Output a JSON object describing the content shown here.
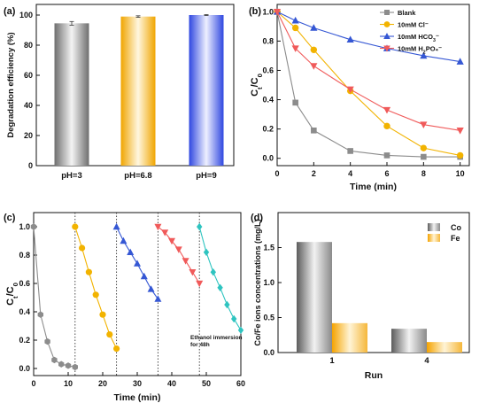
{
  "chart_data": [
    {
      "panel": "(a)",
      "type": "bar",
      "ylabel": "Degradation efficiency (%)",
      "ylim": [
        0,
        100
      ],
      "yticks": [
        0,
        20,
        40,
        60,
        80,
        100
      ],
      "categories": [
        "pH=3",
        "pH=6.8",
        "pH=9"
      ],
      "values": [
        94.5,
        99.0,
        100.0
      ],
      "errors": [
        1.2,
        0.5,
        0.3
      ],
      "colors": [
        "#9e9e9e",
        "#f5b73b",
        "#4a5fe0"
      ]
    },
    {
      "panel": "(b)",
      "type": "line",
      "xlabel": "Time (min)",
      "ylabel": "Ct/C0",
      "ylabel_parts": [
        "C",
        "t",
        "/C",
        "0"
      ],
      "xlim": [
        0,
        10.5
      ],
      "ylim": [
        -0.05,
        1.05
      ],
      "xticks": [
        0,
        2,
        4,
        6,
        8,
        10
      ],
      "yticks": [
        "0.0",
        "0.2",
        "0.4",
        "0.6",
        "0.8",
        "1.0"
      ],
      "legend_position": "top-right",
      "x": [
        0,
        1,
        2,
        4,
        6,
        8,
        10
      ],
      "series": [
        {
          "name": "Blank",
          "name_parts": [
            "Blank",
            "",
            ""
          ],
          "color": "#8c8c8c",
          "marker": "square",
          "values": [
            1.0,
            0.38,
            0.19,
            0.05,
            0.02,
            0.01,
            0.01
          ]
        },
        {
          "name": "10mM Cl⁻",
          "name_parts": [
            "10mM Cl",
            "",
            "⁻"
          ],
          "color": "#f2b300",
          "marker": "circle",
          "values": [
            1.0,
            0.89,
            0.74,
            0.46,
            0.22,
            0.07,
            0.02
          ]
        },
        {
          "name": "10mM HCO₃⁻",
          "name_parts": [
            "10mM HCO",
            "3",
            "⁻"
          ],
          "color": "#3557d4",
          "marker": "triangle-up",
          "values": [
            1.0,
            0.94,
            0.89,
            0.81,
            0.75,
            0.7,
            0.66
          ]
        },
        {
          "name": "10mM H₂PO₄⁻",
          "name_parts": [
            "10mM H",
            "2",
            "PO₄⁻"
          ],
          "color": "#f05a5a",
          "marker": "triangle-down",
          "values": [
            1.0,
            0.75,
            0.63,
            0.47,
            0.33,
            0.23,
            0.19
          ]
        }
      ]
    },
    {
      "panel": "(c)",
      "type": "line",
      "xlabel": "Time (min)",
      "ylabel": "Ct/C0",
      "ylabel_parts": [
        "C",
        "t",
        "/C",
        "0"
      ],
      "xlim": [
        0,
        60
      ],
      "ylim": [
        -0.05,
        1.1
      ],
      "xticks": [
        0,
        10,
        20,
        30,
        40,
        50,
        60
      ],
      "yticks": [
        "0.0",
        "0.2",
        "0.4",
        "0.6",
        "0.8",
        "1.0"
      ],
      "dividers": [
        12,
        24,
        36,
        48
      ],
      "annotation": "Ethanol immersion for 48h",
      "annotation_lines": [
        "Ethanol immersion",
        "for 48h"
      ],
      "series": [
        {
          "color": "#8c8c8c",
          "marker": "hexagon",
          "x": [
            0,
            2,
            4,
            6,
            8,
            10,
            12
          ],
          "values": [
            1.0,
            0.38,
            0.19,
            0.06,
            0.03,
            0.02,
            0.01
          ]
        },
        {
          "color": "#f2b300",
          "marker": "circle",
          "x": [
            12,
            14,
            16,
            18,
            20,
            22,
            24
          ],
          "values": [
            1.0,
            0.85,
            0.68,
            0.52,
            0.38,
            0.24,
            0.14
          ]
        },
        {
          "color": "#3557d4",
          "marker": "triangle-up",
          "x": [
            24,
            26,
            28,
            30,
            32,
            34,
            36
          ],
          "values": [
            1.0,
            0.9,
            0.82,
            0.74,
            0.65,
            0.56,
            0.49
          ]
        },
        {
          "color": "#f05a5a",
          "marker": "triangle-down",
          "x": [
            36,
            38,
            40,
            42,
            44,
            46,
            48
          ],
          "values": [
            1.0,
            0.96,
            0.9,
            0.84,
            0.76,
            0.68,
            0.6
          ]
        },
        {
          "color": "#2ec4c0",
          "marker": "diamond",
          "x": [
            48,
            50,
            52,
            54,
            56,
            58,
            60
          ],
          "values": [
            1.0,
            0.82,
            0.68,
            0.57,
            0.45,
            0.35,
            0.27
          ]
        }
      ]
    },
    {
      "panel": "(d)",
      "type": "bar",
      "xlabel": "Run",
      "ylabel": "Co/Fe ions concentrations (mg/L)",
      "ylim": [
        0,
        2.0
      ],
      "yticks": [
        "0.0",
        "0.5",
        "1.0",
        "1.5"
      ],
      "categories": [
        "1",
        "4"
      ],
      "legend_position": "top-right",
      "series": [
        {
          "name": "Co",
          "color": "#9e9e9e",
          "values": [
            1.58,
            0.34
          ]
        },
        {
          "name": "Fe",
          "color": "#f5b73b",
          "values": [
            0.42,
            0.15
          ]
        }
      ]
    }
  ]
}
